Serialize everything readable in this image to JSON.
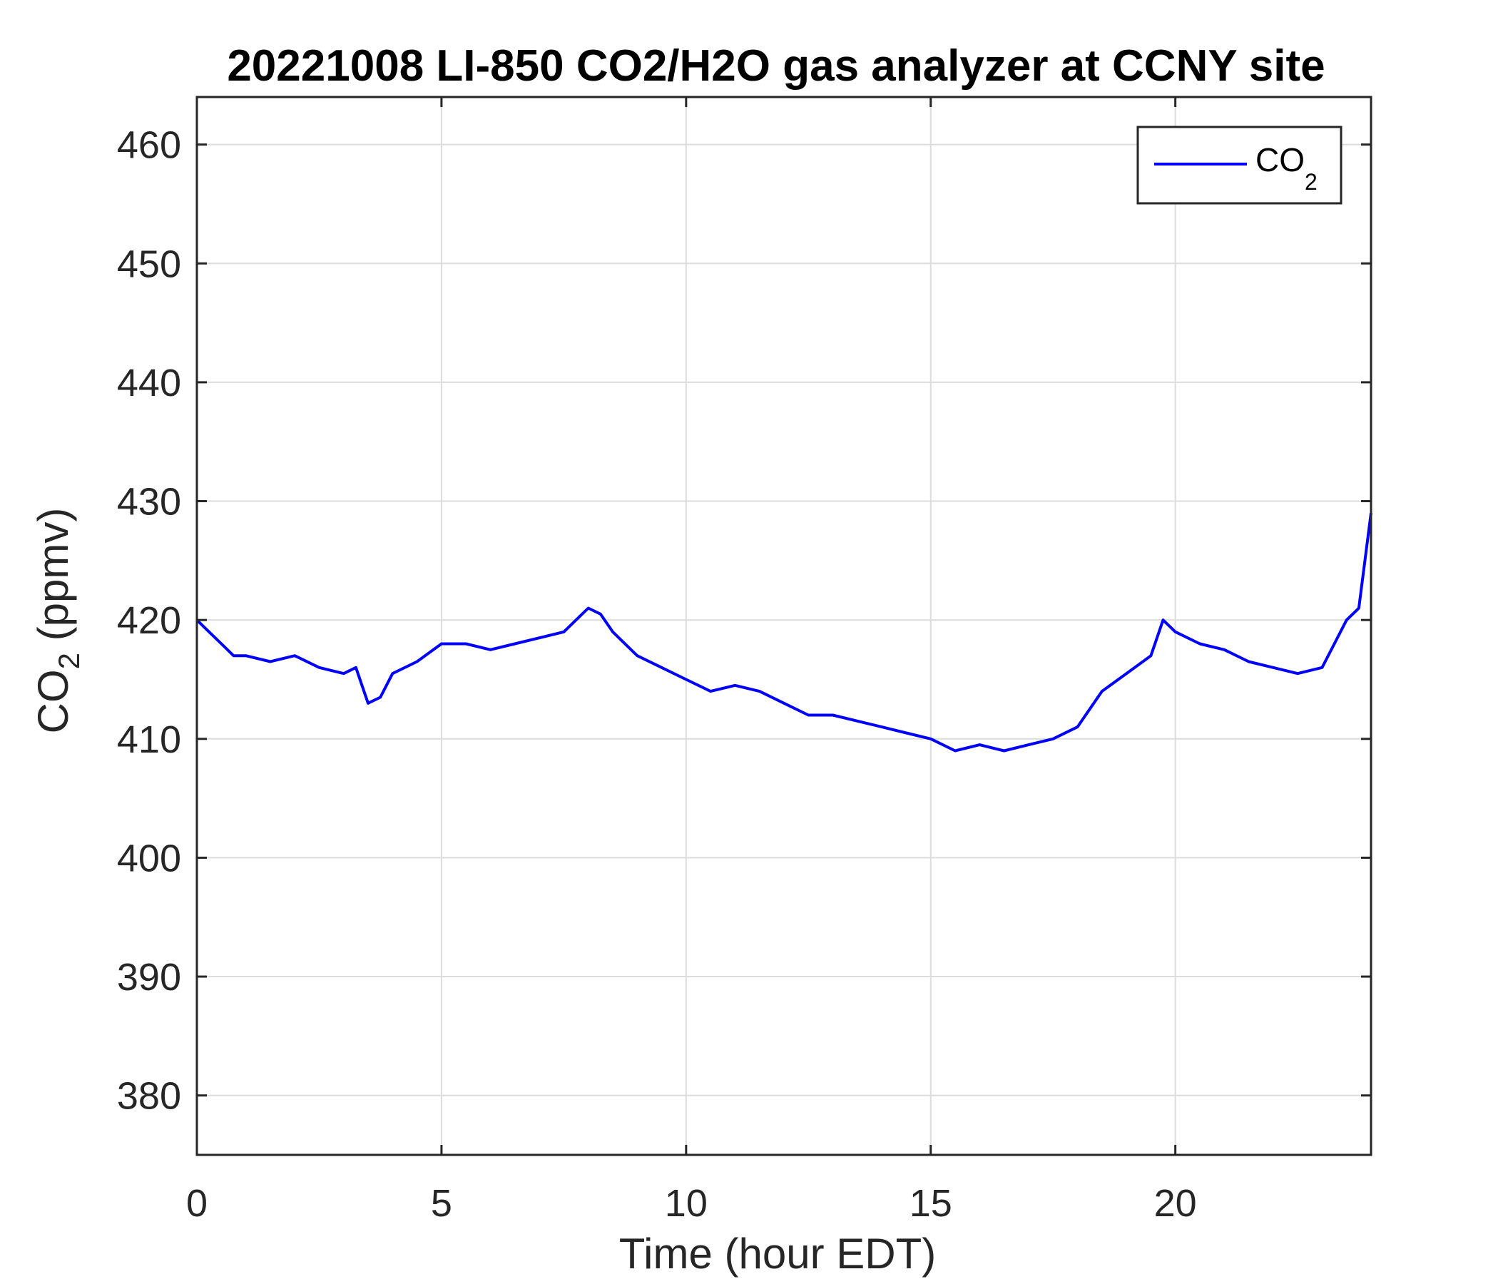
{
  "chart_data": {
    "type": "line",
    "title": "20221008 LI-850 CO2/H2O gas analyzer at CCNY site",
    "xlabel": "Time (hour EDT)",
    "ylabel": {
      "main": "CO",
      "sub": "2",
      "unit": " (ppmv)"
    },
    "xlim": [
      0,
      24
    ],
    "ylim": [
      375,
      464
    ],
    "xticks": [
      0,
      5,
      10,
      15,
      20
    ],
    "yticks": [
      380,
      390,
      400,
      410,
      420,
      430,
      440,
      450,
      460
    ],
    "grid": true,
    "legend_position": "top-right",
    "series": [
      {
        "name": "CO2",
        "legend_label": {
          "main": "CO",
          "sub": "2"
        },
        "color": "#0000FF",
        "x": [
          0,
          0.25,
          0.5,
          0.75,
          1,
          1.5,
          2,
          2.5,
          3,
          3.25,
          3.5,
          3.75,
          4,
          4.5,
          5,
          5.5,
          6,
          6.5,
          7,
          7.5,
          8,
          8.25,
          8.5,
          9,
          9.5,
          10,
          10.5,
          11,
          11.5,
          12,
          12.5,
          13,
          13.5,
          14,
          14.5,
          15,
          15.5,
          16,
          16.5,
          17,
          17.5,
          18,
          18.5,
          19,
          19.5,
          19.75,
          20,
          20.5,
          21,
          21.5,
          22,
          22.5,
          23,
          23.25,
          23.5,
          23.75,
          24
        ],
        "y": [
          420,
          419,
          418,
          417,
          417,
          416.5,
          417,
          416,
          415.5,
          416,
          413,
          413.5,
          415.5,
          416.5,
          418,
          418,
          417.5,
          418,
          418.5,
          419,
          421,
          420.5,
          419,
          417,
          416,
          415,
          414,
          414.5,
          414,
          413,
          412,
          412,
          411.5,
          411,
          410.5,
          410,
          409,
          409.5,
          409,
          409.5,
          410,
          411,
          414,
          415.5,
          417,
          420,
          419,
          418,
          417.5,
          416.5,
          416,
          415.5,
          416,
          418,
          420,
          421,
          429
        ]
      }
    ]
  }
}
